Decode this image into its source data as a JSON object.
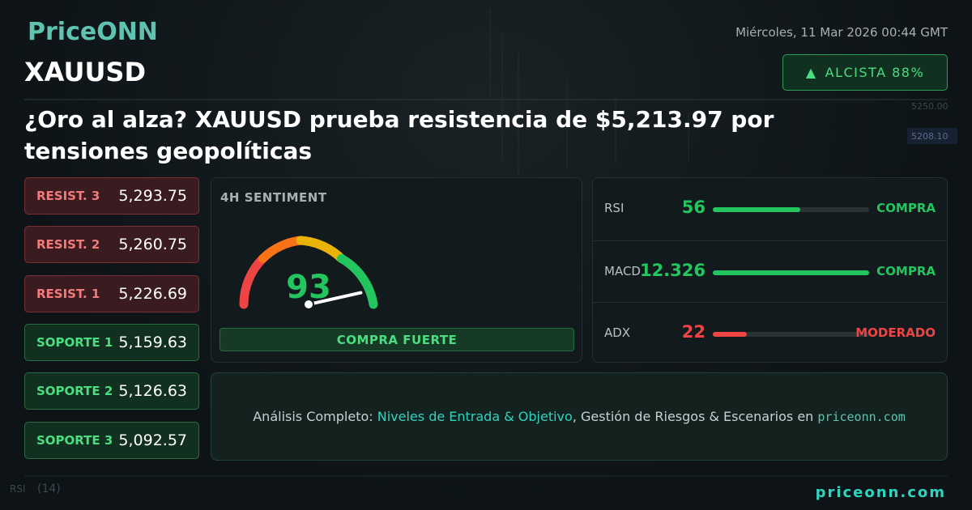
{
  "brand": "PriceONN",
  "date": "Miércoles, 11 Mar 2026 00:44 GMT",
  "symbol": "XAUUSD",
  "trend_badge": "ALCISTA 88%",
  "headline": "¿Oro al alza? XAUUSD prueba resistencia de $5,213.97 por tensiones geopolíticas",
  "levels": [
    {
      "label": "RESIST. 3",
      "value": "5,293.75",
      "kind": "resistance"
    },
    {
      "label": "RESIST. 2",
      "value": "5,260.75",
      "kind": "resistance"
    },
    {
      "label": "RESIST. 1",
      "value": "5,226.69",
      "kind": "resistance"
    },
    {
      "label": "SOPORTE 1",
      "value": "5,159.63",
      "kind": "support"
    },
    {
      "label": "SOPORTE 2",
      "value": "5,126.63",
      "kind": "support"
    },
    {
      "label": "SOPORTE 3",
      "value": "5,092.57",
      "kind": "support"
    }
  ],
  "sentiment": {
    "title": "4H SENTIMENT",
    "value": 93,
    "max": 100,
    "verdict": "COMPRA FUERTE"
  },
  "indicators": [
    {
      "name": "RSI",
      "value": 56,
      "status": "COMPRA",
      "color": "#22c55e"
    },
    {
      "name": "MACD",
      "value": 12.326,
      "status": "COMPRA",
      "color": "#22c55e"
    },
    {
      "name": "ADX",
      "value": 22,
      "status": "MODERADO",
      "color": "#ef4444"
    }
  ],
  "cta": {
    "prefix": "Análisis Completo: ",
    "highlight": "Niveles de Entrada & Objetivo",
    "middle": ", Gestión de Riesgos & Escenarios en ",
    "site": "priceonn.com"
  },
  "footer": "priceonn.com",
  "background_labels": {
    "price_a": "5250.00",
    "price_b": "5208.10",
    "indicator": "RSI",
    "period": "(14)"
  }
}
